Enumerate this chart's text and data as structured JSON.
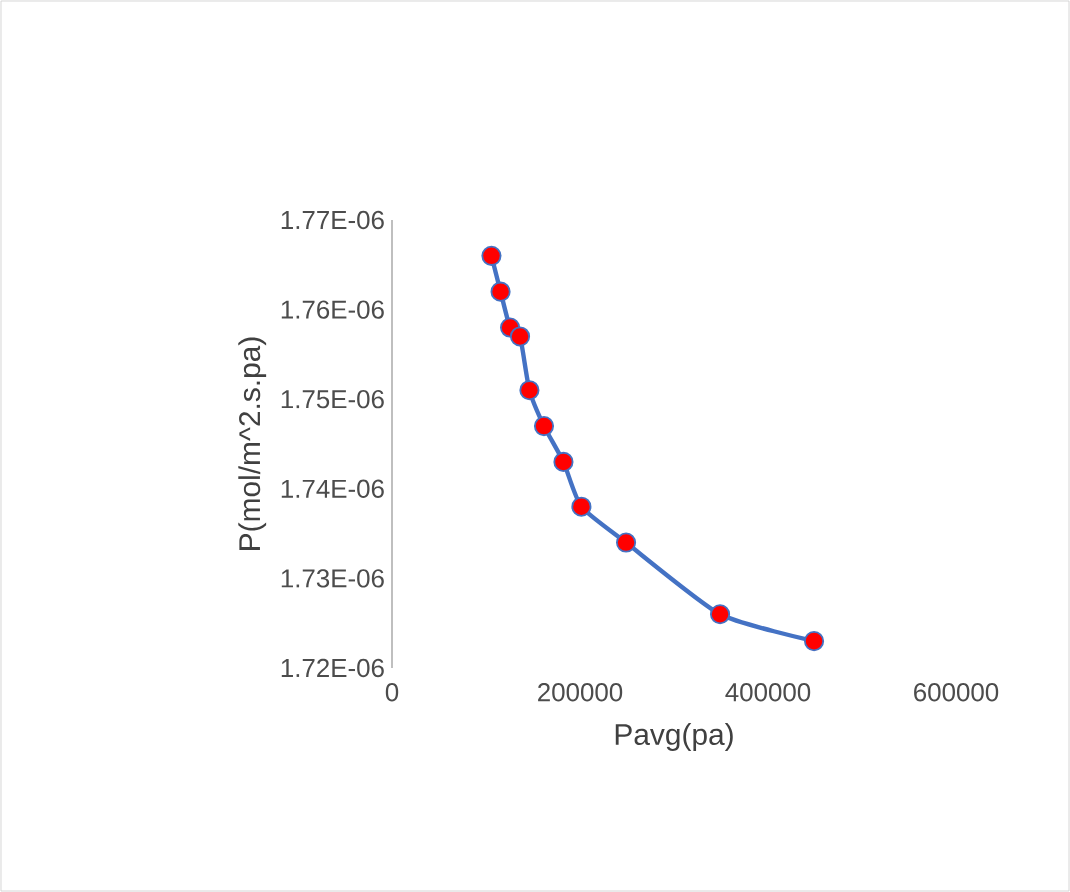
{
  "chart_data": {
    "type": "line",
    "xlabel": "Pavg(pa)",
    "ylabel": "P(mol/m^2.s.pa)",
    "xlim": [
      0,
      600000
    ],
    "xticks": [
      0,
      200000,
      400000,
      600000
    ],
    "ylim": [
      1.72e-06,
      1.77e-06
    ],
    "yticks": [
      {
        "value": 1.72e-06,
        "label": "1.72E-06"
      },
      {
        "value": 1.73e-06,
        "label": "1.73E-06"
      },
      {
        "value": 1.74e-06,
        "label": "1.74E-06"
      },
      {
        "value": 1.75e-06,
        "label": "1.75E-06"
      },
      {
        "value": 1.76e-06,
        "label": "1.76E-06"
      },
      {
        "value": 1.77e-06,
        "label": "1.77E-06"
      }
    ],
    "x": [
      105800,
      115500,
      125600,
      136200,
      146200,
      161700,
      182400,
      201500,
      249000,
      349000,
      449000
    ],
    "series": [
      {
        "color": "#4472c4",
        "values": [
          1.766e-06,
          1.762e-06,
          1.758e-06,
          1.757e-06,
          1.751e-06,
          1.747e-06,
          1.743e-06,
          1.738e-06,
          1.734e-06,
          1.726e-06,
          1.723e-06
        ]
      }
    ],
    "marker": "circle"
  }
}
